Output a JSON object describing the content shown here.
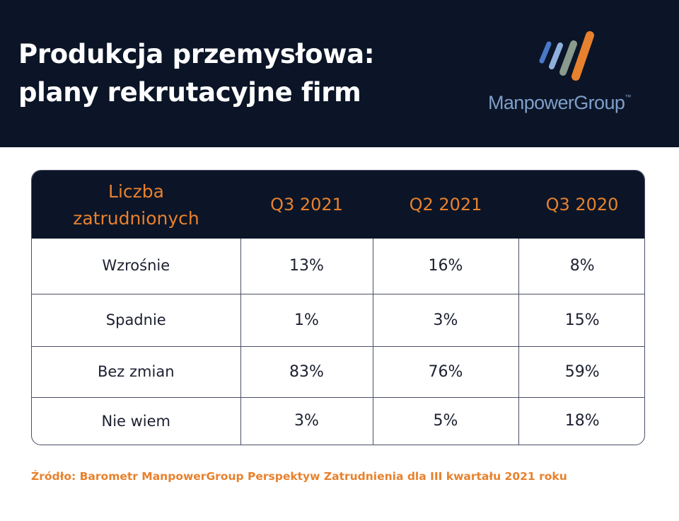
{
  "header": {
    "title_line1": "Produkcja przemysłowa:",
    "title_line2": "plany rekrutacyjne firm",
    "logo_text": "ManpowerGroup",
    "logo_tm": "™"
  },
  "colors": {
    "header_bg": "#0b1527",
    "accent": "#e8812d",
    "logo_text": "#7f9ec9",
    "stripe_blue": "#4a78c8",
    "stripe_lightblue": "#8fb0dd",
    "stripe_gray": "#8a9a8d",
    "stripe_orange": "#e8812d"
  },
  "table": {
    "header_label_line1": "Liczba",
    "header_label_line2": "zatrudnionych",
    "columns": [
      "Q3 2021",
      "Q2 2021",
      "Q3 2020"
    ],
    "rows": [
      {
        "label": "Wzrośnie",
        "values": [
          "13%",
          "16%",
          "8%"
        ]
      },
      {
        "label": "Spadnie",
        "values": [
          "1%",
          "3%",
          "15%"
        ]
      },
      {
        "label": "Bez zmian",
        "values": [
          "83%",
          "76%",
          "59%"
        ]
      },
      {
        "label": "Nie wiem",
        "values": [
          "3%",
          "5%",
          "18%"
        ]
      }
    ]
  },
  "source": "Źródło: Barometr ManpowerGroup Perspektyw Zatrudnienia dla III kwartału 2021 roku"
}
